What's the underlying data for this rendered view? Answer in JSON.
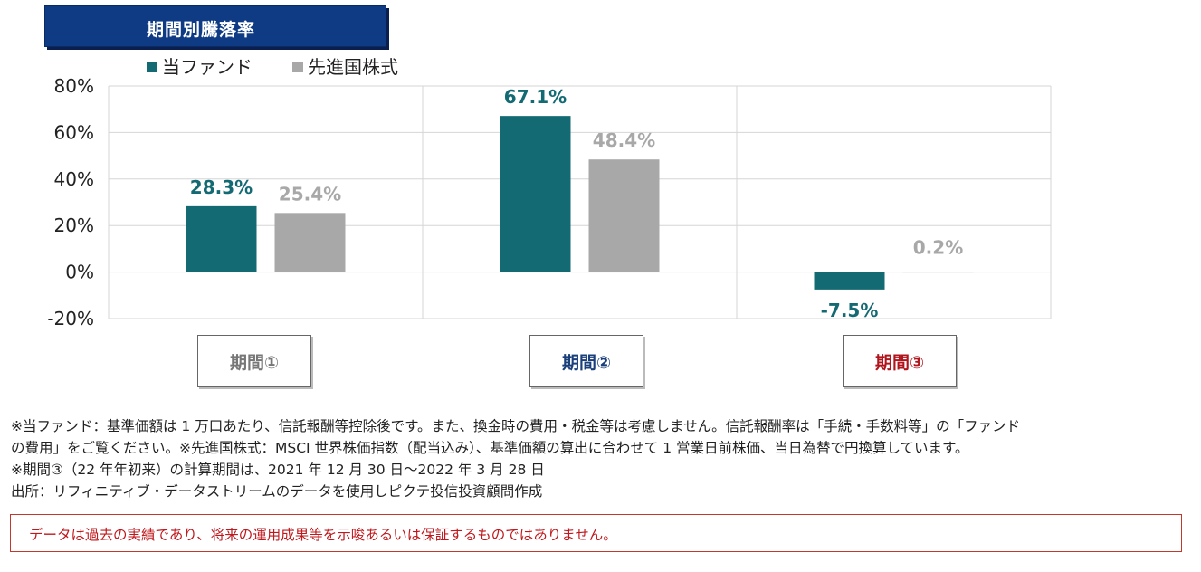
{
  "title": "期間別騰落率",
  "chart_data": {
    "type": "bar",
    "categories": [
      "期間①",
      "期間②",
      "期間③"
    ],
    "series": [
      {
        "name": "当ファンド",
        "color": "#136a72",
        "values": [
          28.3,
          67.1,
          -7.5
        ],
        "labels": [
          "28.3%",
          "67.1%",
          "-7.5%"
        ]
      },
      {
        "name": "先進国株式",
        "color": "#a8a8a8",
        "values": [
          25.4,
          48.4,
          0.2
        ],
        "labels": [
          "25.4%",
          "48.4%",
          "0.2%"
        ]
      }
    ],
    "ylim": [
      -20,
      80
    ],
    "yticks": [
      -20,
      0,
      20,
      40,
      60,
      80
    ],
    "ytick_labels": [
      "-20%",
      "0%",
      "20%",
      "40%",
      "60%",
      "80%"
    ],
    "grid": true,
    "legend_position": "top-left"
  },
  "period_boxes": [
    {
      "label": "期間①",
      "color": "#777777"
    },
    {
      "label": "期間②",
      "color": "#1a3f7a"
    },
    {
      "label": "期間③",
      "color": "#b0141c"
    }
  ],
  "notes": [
    "※当ファンド：基準価額は 1 万口あたり、信託報酬等控除後です。また、換金時の費用・税金等は考慮しません。信託報酬率は「手続・手数料等」の「ファンド",
    "の費用」をご覧ください。※先進国株式：MSCI 世界株価指数（配当込み）、基準価額の算出に合わせて 1 営業日前株価、当日為替で円換算しています。",
    "※期間③（22 年年初来）の計算期間は、2021 年 12 月 30 日～2022 年 3 月 28 日",
    "出所：リフィニティブ・データストリームのデータを使用しピクテ投信投資顧問作成"
  ],
  "disclaimer": "データは過去の実績であり、将来の運用成果等を示唆あるいは保証するものではありません。"
}
